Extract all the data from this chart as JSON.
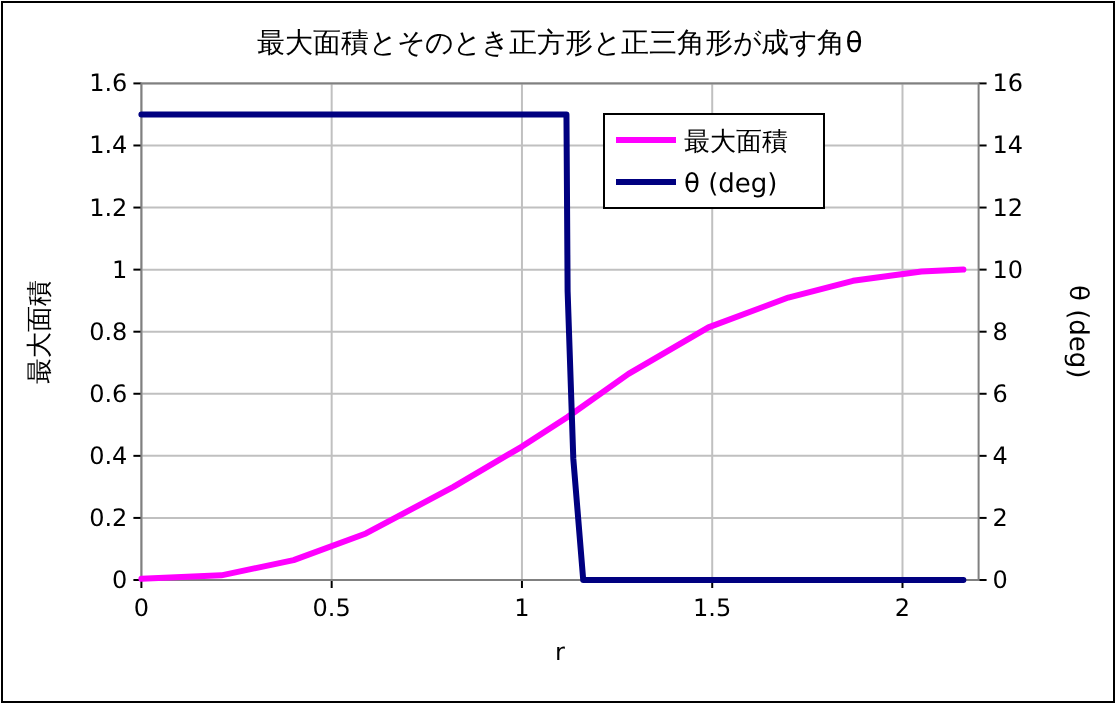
{
  "chart_data": {
    "type": "line",
    "title": "最大面積とそのとき正方形と正三角形が成す角θ",
    "xlabel": "r",
    "ylabel": "最大面積",
    "y2label": "θ (deg)",
    "xlim": [
      0,
      2.2
    ],
    "xticks": [
      0,
      0.5,
      1,
      1.5,
      2
    ],
    "ylim": [
      0,
      1.6
    ],
    "yticks": [
      0,
      0.2,
      0.4,
      0.6,
      0.8,
      1,
      1.2,
      1.4,
      1.6
    ],
    "y2lim": [
      0,
      16
    ],
    "y2ticks": [
      0,
      2,
      4,
      6,
      8,
      10,
      12,
      14,
      16
    ],
    "grid": true,
    "legend": "top right",
    "marker": "none",
    "series": [
      {
        "name": "最大面積",
        "color": "#ff00ff",
        "x": [
          0,
          0.21,
          0.4,
          0.59,
          0.82,
          1.0,
          1.12,
          1.28,
          1.49,
          1.7,
          1.87,
          2.05,
          2.16
        ],
        "values": [
          0.004,
          0.015,
          0.064,
          0.15,
          0.3,
          0.43,
          0.525,
          0.664,
          0.814,
          0.91,
          0.964,
          0.994,
          1.0
        ]
      },
      {
        "name": "θ (deg)",
        "color": "#000080",
        "axis": "y2",
        "x": [
          0,
          1.117,
          1.12,
          1.135,
          1.161,
          2.16
        ],
        "values": [
          15,
          15,
          9.3,
          3.9,
          0,
          0
        ]
      }
    ]
  }
}
